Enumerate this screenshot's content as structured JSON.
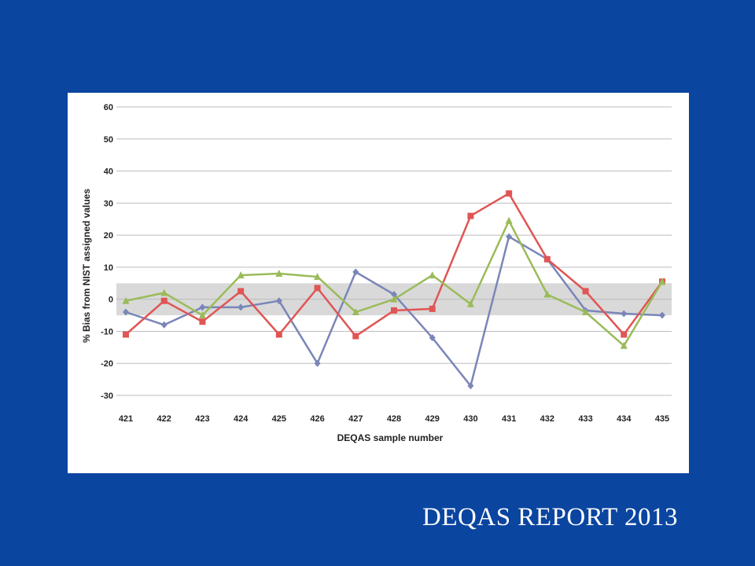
{
  "slide": {
    "caption": "DEQAS REPORT 2013",
    "background_color": "#0a45a0"
  },
  "chart_data": {
    "type": "line",
    "xlabel": "DEQAS sample number",
    "ylabel": "% Bias from NIST assigned values",
    "categories": [
      "421",
      "422",
      "423",
      "424",
      "425",
      "426",
      "427",
      "428",
      "429",
      "430",
      "431",
      "432",
      "433",
      "434",
      "435"
    ],
    "ylim": [
      -30,
      60
    ],
    "yticks": [
      -30,
      -20,
      -10,
      0,
      10,
      20,
      30,
      40,
      50,
      60
    ],
    "grid": true,
    "acceptance_band": [
      -5,
      5
    ],
    "band_color": "#d9d9d9",
    "series": [
      {
        "color": "#7a86b8",
        "marker": "diamond",
        "values": [
          -4,
          -8,
          -2.5,
          -2.5,
          -0.5,
          -20,
          8.5,
          1.5,
          -12,
          -27,
          19.5,
          12.5,
          -3.5,
          -4.5,
          -5
        ]
      },
      {
        "color": "#e05555",
        "marker": "square",
        "values": [
          -11,
          -0.5,
          -7,
          2.5,
          -11,
          3.5,
          -11.5,
          -3.5,
          -3,
          26,
          33,
          12.5,
          2.5,
          -11,
          5.5
        ]
      },
      {
        "color": "#9bbb59",
        "marker": "triangle",
        "values": [
          -0.5,
          2,
          -5,
          7.5,
          8,
          7,
          -4,
          0,
          7.5,
          -1.5,
          24.5,
          1.5,
          -4,
          -14.5,
          5.5
        ]
      }
    ]
  }
}
